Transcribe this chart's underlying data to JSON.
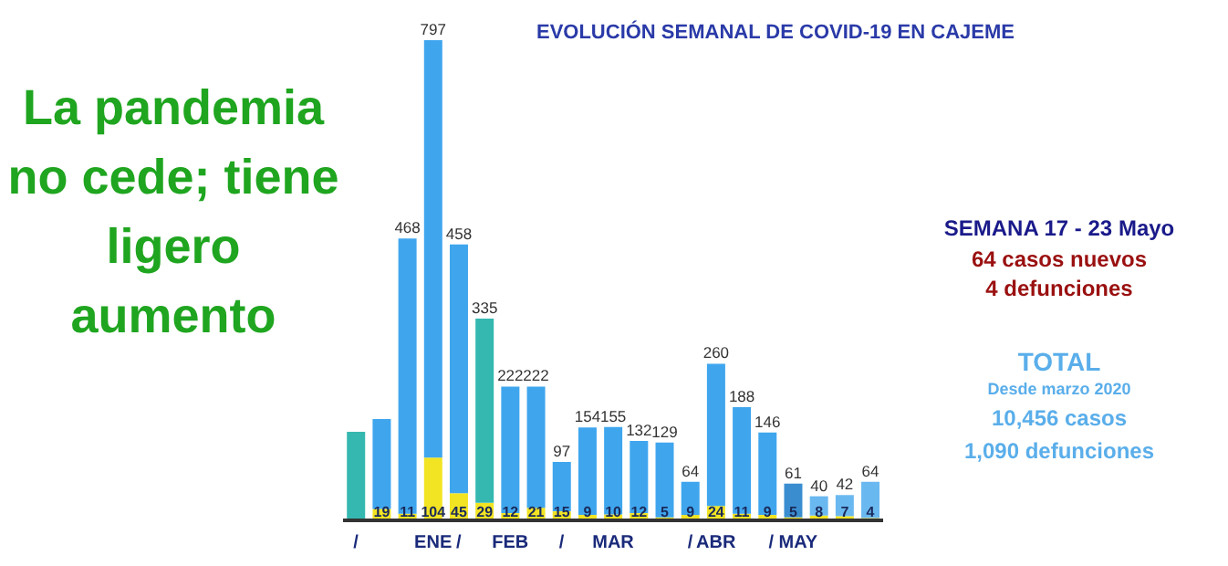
{
  "chart_data": {
    "type": "bar",
    "title": "EVOLUCIÓN SEMANAL DE COVID-19 EN CAJEME",
    "categories": [
      "/",
      null,
      null,
      "ENE",
      "/",
      null,
      "FEB",
      null,
      "/",
      null,
      "MAR",
      null,
      null,
      "/",
      "ABR",
      null,
      null,
      "/ MAY",
      null,
      null,
      null
    ],
    "stacked": true,
    "series": [
      {
        "color": "#f2e422",
        "values": [
          null,
          19,
          11,
          104,
          45,
          29,
          12,
          21,
          15,
          9,
          10,
          12,
          5,
          9,
          24,
          11,
          9,
          5,
          8,
          7,
          4
        ],
        "value_labels": [
          null,
          "19",
          "11",
          "104",
          "45",
          "29",
          "12",
          "21",
          "15",
          "9",
          "10",
          "12",
          "5",
          "9",
          "24",
          "11",
          "9",
          "5",
          "8",
          "7",
          "4"
        ]
      },
      {
        "colors": [
          "#35b8b0",
          "#3fa6ee",
          "#3fa6ee",
          "#3fa6ee",
          "#3fa6ee",
          "#35b8b0",
          "#3fa6ee",
          "#3fa6ee",
          "#3fa6ee",
          "#3fa6ee",
          "#3fa6ee",
          "#3fa6ee",
          "#3fa6ee",
          "#3fa6ee",
          "#3fa6ee",
          "#3fa6ee",
          "#3fa6ee",
          "#3a8ed0",
          "#6ab8f0",
          "#6ab8f0",
          "#6ab8f0"
        ],
        "values": [
          147,
          149,
          457,
          693,
          413,
          306,
          210,
          201,
          82,
          145,
          145,
          120,
          124,
          55,
          236,
          177,
          137,
          56,
          32,
          35,
          60
        ]
      }
    ],
    "totals": [
      null,
      null,
      "468",
      "797",
      "458",
      "335",
      "222",
      "222",
      "97",
      "154",
      "155",
      "132",
      "129",
      "64",
      "260",
      "188",
      "146",
      "61",
      "40",
      "42",
      "64"
    ],
    "legend": false,
    "grid": false,
    "annotations": [
      "La pandemia no cede; tiene ligero aumento",
      "SEMANA 17 - 23 Mayo",
      "64 casos nuevos",
      "4 defunciones",
      "TOTAL",
      "Desde marzo 2020",
      "10,456 casos",
      "1,090 defunciones"
    ]
  }
}
